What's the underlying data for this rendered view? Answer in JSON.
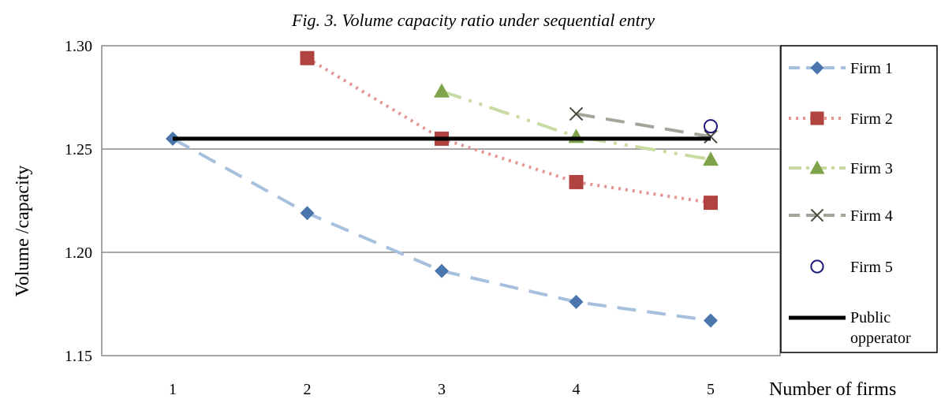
{
  "chart_data": {
    "type": "line",
    "title": "Fig. 3. Volume capacity ratio under sequential entry",
    "xlabel": "Number of firms",
    "ylabel": "Volume /capacity",
    "x": [
      1,
      2,
      3,
      4,
      5
    ],
    "x_tick_labels": [
      "1",
      "2",
      "3",
      "4",
      "5"
    ],
    "ylim": [
      1.15,
      1.3
    ],
    "y_ticks": [
      1.15,
      1.2,
      1.25,
      1.3
    ],
    "y_tick_labels": [
      "1.15",
      "1.20",
      "1.25",
      "1.30"
    ],
    "grid": "horizontal",
    "legend_position": "right",
    "series": [
      {
        "name": "Firm 1",
        "x": [
          1,
          2,
          3,
          4,
          5
        ],
        "values": [
          1.255,
          1.219,
          1.191,
          1.176,
          1.167
        ],
        "line_color": "#a7c0de",
        "marker_color": "#4a76ad",
        "marker": "diamond",
        "dash": "dashed"
      },
      {
        "name": "Firm 2",
        "x": [
          2,
          3,
          4,
          5
        ],
        "values": [
          1.294,
          1.255,
          1.234,
          1.224
        ],
        "line_color": "#e49494",
        "marker_color": "#b0433f",
        "marker": "square",
        "dash": "dotted"
      },
      {
        "name": "Firm 3",
        "x": [
          3,
          4,
          5
        ],
        "values": [
          1.278,
          1.256,
          1.245
        ],
        "line_color": "#c8dba0",
        "marker_color": "#7ea34a",
        "marker": "triangle",
        "dash": "dashdotdot"
      },
      {
        "name": "Firm 4",
        "x": [
          4,
          5
        ],
        "values": [
          1.267,
          1.256
        ],
        "line_color": "#a5a39a",
        "marker_color": "#4a4a3e",
        "marker": "x",
        "dash": "dashed"
      },
      {
        "name": "Firm 5",
        "x": [
          5
        ],
        "values": [
          1.261
        ],
        "line_color": "#1f1a7a",
        "marker_color": "#1f1a7a",
        "marker": "circle",
        "dash": "none"
      },
      {
        "name": "Public opperator",
        "name_lines": [
          "Public",
          "opperator"
        ],
        "x": [
          1,
          2,
          3,
          4,
          5
        ],
        "values": [
          1.255,
          1.255,
          1.255,
          1.255,
          1.255
        ],
        "line_color": "#000000",
        "marker_color": "#000000",
        "marker": "none",
        "dash": "solid"
      }
    ]
  }
}
